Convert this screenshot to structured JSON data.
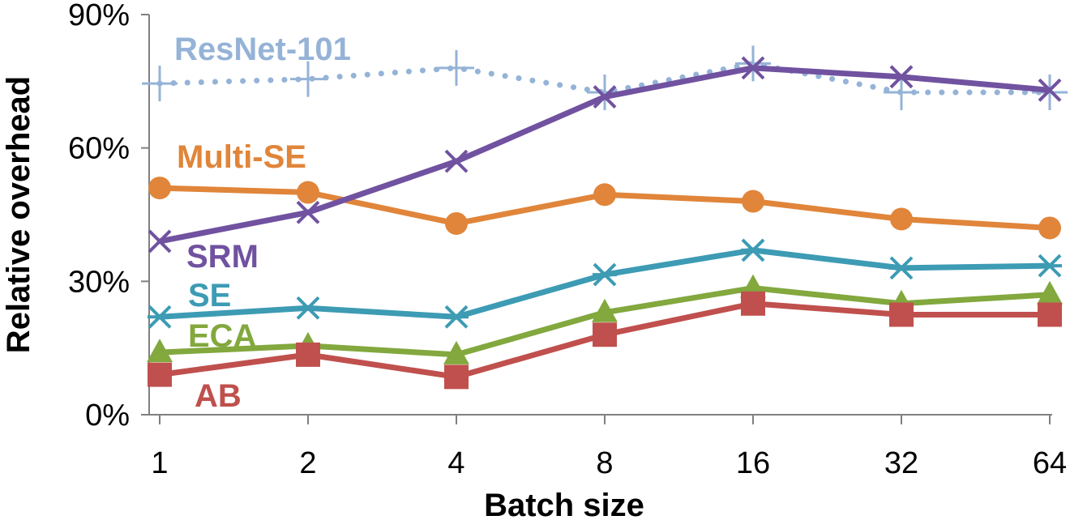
{
  "chart_data": {
    "type": "line",
    "categories": [
      "1",
      "2",
      "4",
      "8",
      "16",
      "32",
      "64"
    ],
    "xlabel": "Batch size",
    "ylabel": "Relative overhead",
    "ylim": [
      0,
      90
    ],
    "yticks": [
      "0%",
      "30%",
      "60%",
      "90%"
    ],
    "grid": false,
    "legend": "inline labels",
    "series": [
      {
        "name": "ResNet-101",
        "color": "#95b3d7",
        "marker": "plus",
        "style": "dotted",
        "values": [
          74.5,
          75.5,
          78,
          72.5,
          79,
          72.5,
          72.5
        ]
      },
      {
        "name": "Multi-SE",
        "color": "#e0853a",
        "marker": "circle",
        "style": "solid",
        "values": [
          51,
          50,
          43,
          49.5,
          48,
          44,
          42
        ]
      },
      {
        "name": "SRM",
        "color": "#7052a0",
        "marker": "x",
        "style": "solid",
        "values": [
          39,
          45.5,
          57,
          71.5,
          78,
          76,
          73
        ]
      },
      {
        "name": "SE",
        "color": "#3d9bb4",
        "marker": "asterisk",
        "style": "solid",
        "values": [
          22,
          24,
          22,
          31.5,
          37,
          33,
          33.5
        ]
      },
      {
        "name": "ECA",
        "color": "#82a83e",
        "marker": "triangle",
        "style": "solid",
        "values": [
          14,
          15.5,
          13.5,
          23,
          28.5,
          25,
          27
        ]
      },
      {
        "name": "AB",
        "color": "#c0504d",
        "marker": "square",
        "style": "solid",
        "values": [
          9,
          13.5,
          8.5,
          18,
          25,
          22.5,
          22.5
        ]
      }
    ]
  }
}
